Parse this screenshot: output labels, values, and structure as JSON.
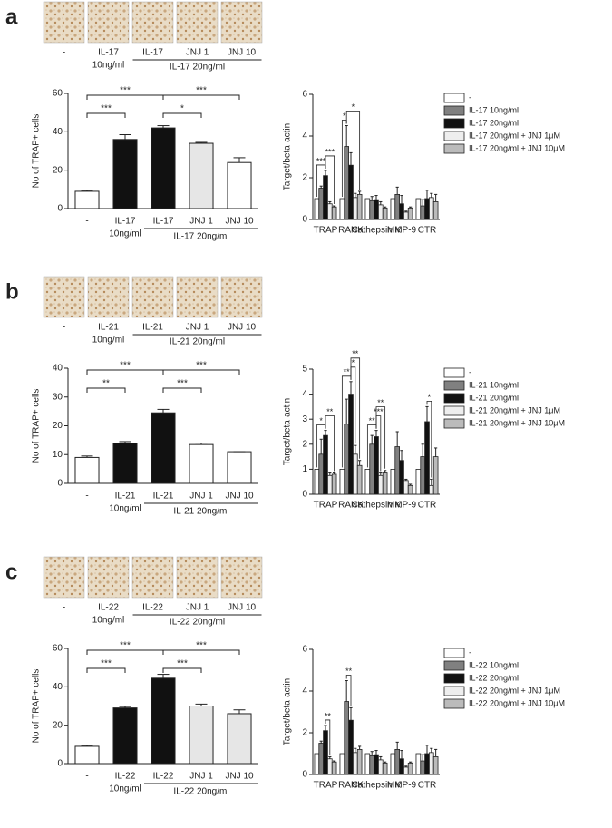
{
  "panels": [
    {
      "letter": "a",
      "image_labels": [
        "-",
        "IL-17",
        "IL-17",
        "JNJ 1",
        "JNJ 10"
      ],
      "image_groups": [
        {
          "label": "10ng/ml",
          "images": [
            1
          ]
        },
        {
          "label": "IL-17 20ng/ml",
          "images": [
            2,
            3,
            4
          ],
          "underline": true
        }
      ]
    },
    {
      "letter": "b",
      "image_labels": [
        "-",
        "IL-21",
        "IL-21",
        "JNJ 1",
        "JNJ 10"
      ],
      "image_groups": [
        {
          "label": "10ng/ml",
          "images": [
            1
          ]
        },
        {
          "label": "IL-21 20ng/ml",
          "images": [
            2,
            3,
            4
          ],
          "underline": true
        }
      ]
    },
    {
      "letter": "c",
      "image_labels": [
        "-",
        "IL-22",
        "IL-22",
        "JNJ 1",
        "JNJ 10"
      ],
      "image_groups": [
        {
          "label": "10ng/ml",
          "images": [
            1
          ]
        },
        {
          "label": "IL-22 20ng/ml",
          "images": [
            2,
            3,
            4
          ],
          "underline": true
        }
      ]
    }
  ],
  "chart_data": [
    {
      "type": "bar",
      "ylabel": "No of TRAP+ cells",
      "categories": [
        "-",
        "IL-17",
        "IL-17",
        "JNJ 1",
        "JNJ 10"
      ],
      "groups": [
        {
          "label": "10ng/ml",
          "categories": [
            1
          ]
        },
        {
          "label": "IL-17 20ng/ml",
          "categories": [
            2,
            3,
            4
          ],
          "underline": true
        }
      ],
      "values": [
        9,
        36,
        42,
        34,
        24
      ],
      "errors": [
        0.5,
        2.5,
        1.2,
        0.5,
        2.5
      ],
      "colors": [
        "#ffffff",
        "#111111",
        "#111111",
        "#e6e6e6",
        "#ffffff"
      ],
      "ylim": [
        0,
        60
      ],
      "yticks": [
        0,
        20,
        40,
        60
      ],
      "annotations": [
        {
          "text": "***",
          "from": 0,
          "to": 2
        },
        {
          "text": "***",
          "from": 0,
          "to": 1
        },
        {
          "text": "***",
          "from": 2,
          "to": 4
        },
        {
          "text": "*",
          "from": 2,
          "to": 3
        }
      ]
    },
    {
      "type": "bar",
      "ylabel": "Target/beta-actin",
      "categories": [
        "TRAP",
        "RANK",
        "Cathepsin K",
        "MMP-9",
        "CTR"
      ],
      "series": [
        {
          "name": "-",
          "color": "#ffffff",
          "values": [
            1,
            1,
            1,
            1,
            1
          ]
        },
        {
          "name": "IL-17 10ng/ml",
          "color": "#808080",
          "values": [
            1.5,
            3.5,
            0.9,
            1.2,
            0.65
          ],
          "errors": [
            0.1,
            1.0,
            0.2,
            0.35,
            0.3
          ]
        },
        {
          "name": "IL-17 20ng/ml",
          "color": "#111111",
          "values": [
            2.1,
            2.6,
            0.95,
            0.75,
            1.0
          ],
          "errors": [
            0.25,
            0.6,
            0.2,
            0.4,
            0.4
          ]
        },
        {
          "name": "IL-17 20ng/ml + JNJ 1μM",
          "color": "#eeeeee",
          "values": [
            0.75,
            1.05,
            0.7,
            0.35,
            1.05
          ],
          "errors": [
            0.1,
            0.2,
            0.15,
            0.05,
            0.2
          ]
        },
        {
          "name": "IL-17 20ng/ml + JNJ 10μM",
          "color": "#bbbbbb",
          "values": [
            0.6,
            1.2,
            0.55,
            0.55,
            0.85
          ],
          "errors": [
            0.05,
            0.15,
            0.05,
            0.05,
            0.35
          ]
        }
      ],
      "ylim": [
        0,
        6
      ],
      "yticks": [
        0,
        2,
        4,
        6
      ],
      "annotations": [
        {
          "text": "***",
          "category": 0,
          "from": 0,
          "to": 2
        },
        {
          "text": "***",
          "category": 0,
          "from": 2,
          "to": 4
        },
        {
          "text": "*",
          "category": 1,
          "from": 0,
          "to": 1
        },
        {
          "text": "*",
          "category": 1,
          "from": 1,
          "to": 4
        }
      ]
    },
    {
      "type": "bar",
      "ylabel": "No of TRAP+ cells",
      "categories": [
        "-",
        "IL-21",
        "IL-21",
        "JNJ 1",
        "JNJ 10"
      ],
      "groups": [
        {
          "label": "10ng/ml",
          "categories": [
            1
          ]
        },
        {
          "label": "IL-21 20ng/ml",
          "categories": [
            2,
            3,
            4
          ],
          "underline": true
        }
      ],
      "values": [
        9,
        14,
        24.5,
        13.5,
        11
      ],
      "errors": [
        0.5,
        0.5,
        1.2,
        0.5,
        0
      ],
      "colors": [
        "#ffffff",
        "#111111",
        "#111111",
        "#ffffff",
        "#ffffff"
      ],
      "ylim": [
        0,
        40
      ],
      "yticks": [
        0,
        10,
        20,
        30,
        40
      ],
      "annotations": [
        {
          "text": "***",
          "from": 0,
          "to": 2
        },
        {
          "text": "**",
          "from": 0,
          "to": 1
        },
        {
          "text": "***",
          "from": 2,
          "to": 4
        },
        {
          "text": "***",
          "from": 2,
          "to": 3
        }
      ]
    },
    {
      "type": "bar",
      "ylabel": "Target/beta-actin",
      "categories": [
        "TRAP",
        "RANK",
        "Cathepsin K",
        "MMP-9",
        "CTR"
      ],
      "series": [
        {
          "name": "-",
          "color": "#ffffff",
          "values": [
            1,
            1,
            1,
            1,
            1
          ]
        },
        {
          "name": "IL-21 10ng/ml",
          "color": "#808080",
          "values": [
            1.6,
            2.8,
            2.0,
            1.9,
            1.5
          ],
          "errors": [
            0.6,
            1.0,
            0.35,
            0.6,
            0.5
          ]
        },
        {
          "name": "IL-21 20ng/ml",
          "color": "#111111",
          "values": [
            2.35,
            4.0,
            2.3,
            1.35,
            2.9
          ],
          "errors": [
            0.2,
            0.5,
            0.25,
            0.4,
            0.6
          ]
        },
        {
          "name": "IL-21 20ng/ml + JNJ 1μM",
          "color": "#eeeeee",
          "values": [
            0.75,
            1.6,
            0.75,
            0.55,
            0.35
          ],
          "errors": [
            0.1,
            0.35,
            0.1,
            0.05,
            0.25
          ]
        },
        {
          "name": "IL-21 20ng/ml + JNJ 10μM",
          "color": "#bbbbbb",
          "values": [
            0.8,
            1.15,
            0.85,
            0.35,
            1.5
          ],
          "errors": [
            0.05,
            0.2,
            0.1,
            0.05,
            0.35
          ]
        }
      ],
      "ylim": [
        0,
        5
      ],
      "yticks": [
        0,
        1,
        2,
        3,
        4,
        5
      ],
      "annotations": [
        {
          "text": "*",
          "category": 0,
          "from": 0,
          "to": 2
        },
        {
          "text": "**",
          "category": 0,
          "from": 2,
          "to": 4
        },
        {
          "text": "**",
          "category": 1,
          "from": 0,
          "to": 2
        },
        {
          "text": "*",
          "category": 1,
          "from": 2,
          "to": 3
        },
        {
          "text": "**",
          "category": 1,
          "from": 2,
          "to": 4
        },
        {
          "text": "**",
          "category": 2,
          "from": 0,
          "to": 2
        },
        {
          "text": "***",
          "category": 2,
          "from": 2,
          "to": 3
        },
        {
          "text": "**",
          "category": 2,
          "from": 2,
          "to": 4
        },
        {
          "text": "*",
          "category": 4,
          "from": 2,
          "to": 3
        }
      ]
    },
    {
      "type": "bar",
      "ylabel": "No of TRAP+ cells",
      "categories": [
        "-",
        "IL-22",
        "IL-22",
        "JNJ 1",
        "JNJ 10"
      ],
      "groups": [
        {
          "label": "10ng/ml",
          "categories": [
            1
          ]
        },
        {
          "label": "IL-22 20ng/ml",
          "categories": [
            2,
            3,
            4
          ],
          "underline": true
        }
      ],
      "values": [
        9,
        29,
        44.5,
        30,
        26
      ],
      "errors": [
        0.5,
        0.7,
        2,
        1,
        2
      ],
      "colors": [
        "#ffffff",
        "#111111",
        "#111111",
        "#e6e6e6",
        "#e6e6e6"
      ],
      "ylim": [
        0,
        60
      ],
      "yticks": [
        0,
        20,
        40,
        60
      ],
      "annotations": [
        {
          "text": "***",
          "from": 0,
          "to": 2
        },
        {
          "text": "***",
          "from": 0,
          "to": 1
        },
        {
          "text": "***",
          "from": 2,
          "to": 4
        },
        {
          "text": "***",
          "from": 2,
          "to": 3
        }
      ]
    },
    {
      "type": "bar",
      "ylabel": "Target/beta-actin",
      "categories": [
        "TRAP",
        "RANK",
        "Cathepsin K",
        "MMP-9",
        "CTR"
      ],
      "series": [
        {
          "name": "-",
          "color": "#ffffff",
          "values": [
            1,
            1,
            1,
            1,
            1
          ]
        },
        {
          "name": "IL-22 10ng/ml",
          "color": "#808080",
          "values": [
            1.5,
            3.5,
            0.9,
            1.2,
            0.65
          ],
          "errors": [
            0.1,
            1.0,
            0.2,
            0.35,
            0.3
          ]
        },
        {
          "name": "IL-22 20ng/ml",
          "color": "#111111",
          "values": [
            2.1,
            2.6,
            0.95,
            0.75,
            1.0
          ],
          "errors": [
            0.25,
            0.6,
            0.2,
            0.4,
            0.4
          ]
        },
        {
          "name": "IL-22 20ng/ml + JNJ 1μM",
          "color": "#eeeeee",
          "values": [
            0.75,
            1.05,
            0.7,
            0.35,
            1.05
          ],
          "errors": [
            0.1,
            0.2,
            0.15,
            0.05,
            0.2
          ]
        },
        {
          "name": "IL-22 20ng/ml + JNJ 10μM",
          "color": "#bbbbbb",
          "values": [
            0.6,
            1.2,
            0.55,
            0.55,
            0.85
          ],
          "errors": [
            0.05,
            0.15,
            0.05,
            0.05,
            0.35
          ]
        }
      ],
      "ylim": [
        0,
        6
      ],
      "yticks": [
        0,
        2,
        4,
        6
      ],
      "annotations": [
        {
          "text": "**",
          "category": 0,
          "from": 2,
          "to": 3
        },
        {
          "text": "**",
          "category": 1,
          "from": 1,
          "to": 2
        }
      ]
    }
  ]
}
